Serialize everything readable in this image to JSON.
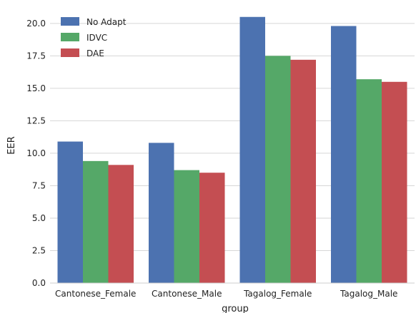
{
  "chart_data": {
    "type": "bar",
    "categories": [
      "Cantonese_Female",
      "Cantonese_Male",
      "Tagalog_Female",
      "Tagalog_Male"
    ],
    "series": [
      {
        "name": "No Adapt",
        "values": [
          10.9,
          10.8,
          20.5,
          19.8
        ],
        "color": "#4c72b0"
      },
      {
        "name": "IDVC",
        "values": [
          9.4,
          8.7,
          17.5,
          15.7
        ],
        "color": "#55a868"
      },
      {
        "name": "DAE",
        "values": [
          9.1,
          8.5,
          17.2,
          15.5
        ],
        "color": "#c44e52"
      }
    ],
    "xlabel": "group",
    "ylabel": "EER",
    "ylim": [
      0,
      21.2
    ],
    "yticks": [
      "0.0",
      "2.5",
      "5.0",
      "7.5",
      "10.0",
      "12.5",
      "15.0",
      "17.5",
      "20.0"
    ],
    "grid": true,
    "legend": "top-left"
  }
}
